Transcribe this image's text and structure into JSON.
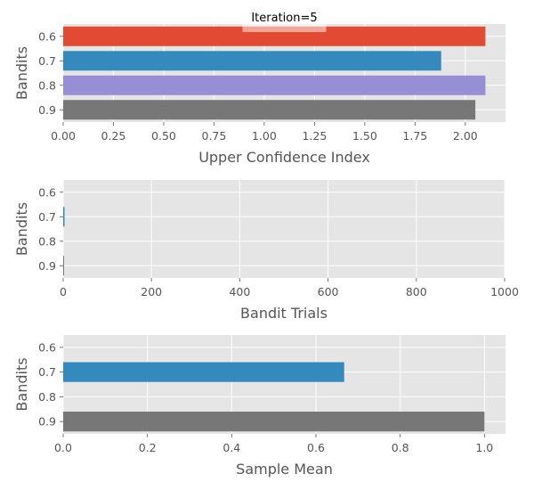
{
  "chart_data": [
    {
      "type": "bar",
      "orientation": "horizontal",
      "title": "Iteration=5",
      "xlabel": "Upper Confidence Index",
      "ylabel": "Bandits",
      "categories": [
        "0.6",
        "0.7",
        "0.8",
        "0.9"
      ],
      "values": [
        2.1,
        1.88,
        2.1,
        2.05
      ],
      "colors": [
        "#E24A33",
        "#348ABD",
        "#988ED5",
        "#777777"
      ],
      "xlim": [
        0,
        2.2
      ],
      "xticks": [
        "0.00",
        "0.25",
        "0.50",
        "0.75",
        "1.00",
        "1.25",
        "1.50",
        "1.75",
        "2.00"
      ],
      "xtick_values": [
        0,
        0.25,
        0.5,
        0.75,
        1.0,
        1.25,
        1.5,
        1.75,
        2.0
      ],
      "grid": true
    },
    {
      "type": "bar",
      "orientation": "horizontal",
      "title": "",
      "xlabel": "Bandit Trials",
      "ylabel": "Bandits",
      "categories": [
        "0.6",
        "0.7",
        "0.8",
        "0.9"
      ],
      "values": [
        0,
        3,
        0,
        2
      ],
      "colors": [
        "#E24A33",
        "#348ABD",
        "#988ED5",
        "#777777"
      ],
      "xlim": [
        0,
        1000
      ],
      "xticks": [
        "0",
        "200",
        "400",
        "600",
        "800",
        "1000"
      ],
      "xtick_values": [
        0,
        200,
        400,
        600,
        800,
        1000
      ],
      "grid": true
    },
    {
      "type": "bar",
      "orientation": "horizontal",
      "title": "",
      "xlabel": "Sample Mean",
      "ylabel": "Bandits",
      "categories": [
        "0.6",
        "0.7",
        "0.8",
        "0.9"
      ],
      "values": [
        0,
        0.667,
        0,
        1.0
      ],
      "colors": [
        "#E24A33",
        "#348ABD",
        "#988ED5",
        "#777777"
      ],
      "xlim": [
        0,
        1.05
      ],
      "xticks": [
        "0.0",
        "0.2",
        "0.4",
        "0.6",
        "0.8",
        "1.0"
      ],
      "xtick_values": [
        0,
        0.2,
        0.4,
        0.6,
        0.8,
        1.0
      ],
      "grid": true
    }
  ]
}
